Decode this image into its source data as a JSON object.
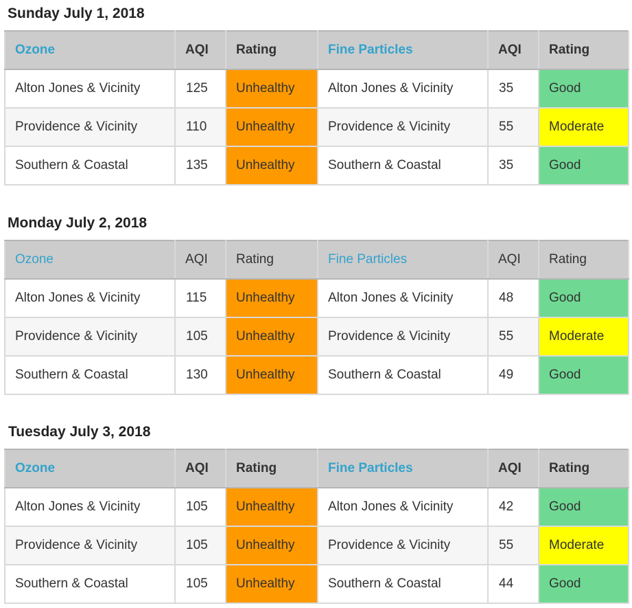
{
  "days": [
    {
      "title": "Sunday July 1, 2018",
      "headers": {
        "ozone": "Ozone",
        "ozone_aqi": "AQI",
        "ozone_rating": "Rating",
        "pm": "Fine Particles",
        "pm_aqi": "AQI",
        "pm_rating": "Rating"
      },
      "rows": [
        {
          "ozone_area": "Alton Jones & Vicinity",
          "ozone_aqi": "125",
          "ozone_rating": "Unhealthy",
          "pm_area": "Alton Jones & Vicinity",
          "pm_aqi": "35",
          "pm_rating": "Good"
        },
        {
          "ozone_area": "Providence & Vicinity",
          "ozone_aqi": "110",
          "ozone_rating": "Unhealthy",
          "pm_area": "Providence & Vicinity",
          "pm_aqi": "55",
          "pm_rating": "Moderate"
        },
        {
          "ozone_area": "Southern & Coastal",
          "ozone_aqi": "135",
          "ozone_rating": "Unhealthy",
          "pm_area": "Southern & Coastal",
          "pm_aqi": "35",
          "pm_rating": "Good"
        }
      ]
    },
    {
      "title": "Monday July 2, 2018",
      "headers": {
        "ozone": "Ozone",
        "ozone_aqi": "AQI",
        "ozone_rating": "Rating",
        "pm": "Fine Particles",
        "pm_aqi": "AQI",
        "pm_rating": "Rating"
      },
      "rows": [
        {
          "ozone_area": "Alton Jones & Vicinity",
          "ozone_aqi": "115",
          "ozone_rating": "Unhealthy",
          "pm_area": "Alton Jones & Vicinity",
          "pm_aqi": "48",
          "pm_rating": "Good"
        },
        {
          "ozone_area": "Providence & Vicinity",
          "ozone_aqi": "105",
          "ozone_rating": "Unhealthy",
          "pm_area": "Providence & Vicinity",
          "pm_aqi": "55",
          "pm_rating": "Moderate"
        },
        {
          "ozone_area": "Southern & Coastal",
          "ozone_aqi": "130",
          "ozone_rating": "Unhealthy",
          "pm_area": "Southern & Coastal",
          "pm_aqi": "49",
          "pm_rating": "Good"
        }
      ]
    },
    {
      "title": "Tuesday July 3, 2018",
      "headers": {
        "ozone": "Ozone",
        "ozone_aqi": "AQI",
        "ozone_rating": "Rating",
        "pm": "Fine Particles",
        "pm_aqi": "AQI",
        "pm_rating": "Rating"
      },
      "rows": [
        {
          "ozone_area": "Alton Jones & Vicinity",
          "ozone_aqi": "105",
          "ozone_rating": "Unhealthy",
          "pm_area": "Alton Jones & Vicinity",
          "pm_aqi": "42",
          "pm_rating": "Good"
        },
        {
          "ozone_area": "Providence & Vicinity",
          "ozone_aqi": "105",
          "ozone_rating": "Unhealthy",
          "pm_area": "Providence & Vicinity",
          "pm_aqi": "55",
          "pm_rating": "Moderate"
        },
        {
          "ozone_area": "Southern & Coastal",
          "ozone_aqi": "105",
          "ozone_rating": "Unhealthy",
          "pm_area": "Southern & Coastal",
          "pm_aqi": "44",
          "pm_rating": "Good"
        }
      ]
    }
  ],
  "colors": {
    "unhealthy": "#ff9900",
    "moderate": "#ffff00",
    "good": "#6fd993",
    "header_bg": "#cccccc",
    "pollutant_header_text": "#33a3cc"
  }
}
